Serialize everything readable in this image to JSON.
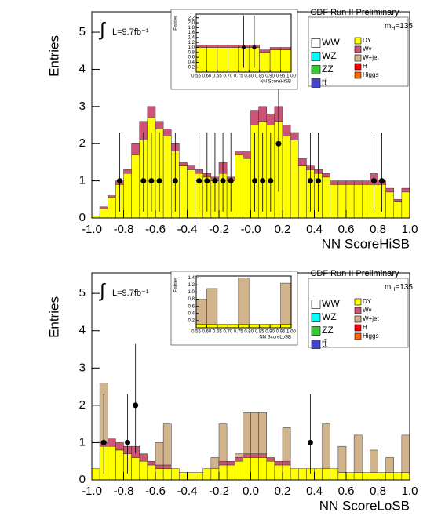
{
  "chart_data": [
    {
      "type": "histogram",
      "x_label": "NN ScoreHiSB",
      "y_label": "Entries",
      "bins": [
        -1,
        -0.95,
        -0.9,
        -0.85,
        -0.8,
        -0.75,
        -0.7,
        -0.65,
        -0.6,
        -0.55,
        -0.5,
        -0.45,
        -0.4,
        -0.35,
        -0.3,
        -0.25,
        -0.2,
        -0.15,
        -0.1,
        -0.05,
        0,
        0.05,
        0.1,
        0.15,
        0.2,
        0.25,
        0.3,
        0.35,
        0.4,
        0.45,
        0.5,
        0.55,
        0.6,
        0.65,
        0.7,
        0.75,
        0.8,
        0.85,
        0.9,
        0.95,
        1
      ],
      "series": [
        {
          "name": "DY",
          "color": "#ffff00",
          "values": [
            0.05,
            0.25,
            0.55,
            0.9,
            1.2,
            1.7,
            2.1,
            2.7,
            2.4,
            2.2,
            1.8,
            1.4,
            1.3,
            1.2,
            1.1,
            1.0,
            1.2,
            1.0,
            1.7,
            1.6,
            2.5,
            2.6,
            2.5,
            2.6,
            2.2,
            2.1,
            1.4,
            1.3,
            1.2,
            1.1,
            0.9,
            0.9,
            0.9,
            0.9,
            0.9,
            0.9,
            0.9,
            0.7,
            0.45,
            0.7
          ]
        },
        {
          "name": "Wγ",
          "color": "#cc5577",
          "values": [
            0,
            0.05,
            0.05,
            0.1,
            0.1,
            0.3,
            0.5,
            0.3,
            0.2,
            0.2,
            0.2,
            0.1,
            0.1,
            0.1,
            0.1,
            0.1,
            0.3,
            0.1,
            0.1,
            0.2,
            0.4,
            0.4,
            0.3,
            0.4,
            0.3,
            0.2,
            0.2,
            0.1,
            0.1,
            0.1,
            0.1,
            0.1,
            0.1,
            0.1,
            0.1,
            0.3,
            0.1,
            0.1,
            0.05,
            0.1
          ]
        }
      ],
      "data_points": {
        "x": [
          -0.825,
          -0.675,
          -0.625,
          -0.575,
          -0.475,
          -0.325,
          -0.275,
          -0.225,
          -0.175,
          -0.125,
          0.025,
          0.075,
          0.125,
          0.175,
          0.375,
          0.425,
          0.775,
          0.825
        ],
        "values": [
          1,
          1,
          1,
          1,
          1,
          1,
          1,
          1,
          1,
          1,
          1,
          1,
          1,
          2,
          1,
          1,
          1,
          1
        ],
        "error_low": [
          0.83,
          0.83,
          0.83,
          0.83,
          0.83,
          0.83,
          0.83,
          0.83,
          0.83,
          0.83,
          0.83,
          0.83,
          0.83,
          1.29,
          0.83,
          0.83,
          0.83,
          0.83
        ],
        "error_high": [
          1.3,
          1.3,
          1.3,
          1.3,
          1.3,
          1.3,
          1.3,
          1.3,
          1.3,
          1.3,
          1.3,
          1.3,
          1.3,
          1.64,
          1.3,
          1.3,
          1.3,
          1.3
        ]
      },
      "xlim": [
        -1,
        1
      ],
      "ylim": [
        0,
        5.55
      ],
      "xticks": [
        {
          "value": -1,
          "label": "-1.0"
        },
        -0.8,
        -0.6,
        -0.4,
        -0.2,
        {
          "value": 0,
          "label": "-0.0"
        },
        0.2,
        0.4,
        0.6,
        0.8,
        {
          "value": 1,
          "label": "1.0"
        }
      ],
      "yticks": [
        0,
        1,
        2,
        3,
        4,
        5
      ],
      "experiment_label": "CDF Run II Preliminary",
      "mass_label": {
        "symbol": "m",
        "subscript": "H",
        "text": "=135"
      },
      "integral_symbol": "∫",
      "luminosity_label": "L=9.7fb⁻¹",
      "legend": [
        {
          "name": "WW",
          "color": "#ffffff"
        },
        {
          "name": "WZ",
          "color": "#00ffff"
        },
        {
          "name": "ZZ",
          "color": "#33cc33"
        },
        {
          "name": "tt̄",
          "color": "#4444cc"
        },
        {
          "name": "DY",
          "color": "#ffff00"
        },
        {
          "name": "Wγ",
          "color": "#cc5577"
        },
        {
          "name": "W+jet",
          "color": "#d2b48c"
        },
        {
          "name": "H",
          "color": "#ff0000"
        },
        {
          "name": "Higgs",
          "color": "#ff6600"
        }
      ]
    },
    {
      "type": "histogram",
      "x_label": "NN ScoreHiSB",
      "y_label": "Entries",
      "bins": [
        0.55,
        0.6,
        0.65,
        0.7,
        0.75,
        0.8,
        0.85,
        0.9,
        0.95,
        1
      ],
      "series": [
        {
          "name": "DY",
          "color": "#ffff00",
          "values": [
            1.0,
            1.0,
            1.0,
            1.0,
            1.0,
            1.0,
            0.8,
            0.9,
            0.9
          ]
        },
        {
          "name": "Wγ",
          "color": "#cc5577",
          "values": [
            0.1,
            0.1,
            0.1,
            0.1,
            0.1,
            0.1,
            0.1,
            0.1,
            0.1
          ]
        }
      ],
      "data_points": {
        "x": [
          0.775,
          0.825
        ],
        "values": [
          1,
          1
        ],
        "error_low": [
          0.83,
          0.83
        ],
        "error_high": [
          1.3,
          1.3
        ]
      },
      "xlim": [
        0.55,
        1
      ],
      "ylim": [
        0,
        2.35
      ],
      "xticks": [
        0.55,
        {
          "value": 0.6,
          "label": "0.60"
        },
        0.65,
        {
          "value": 0.7,
          "label": "0.70"
        },
        0.75,
        {
          "value": 0.8,
          "label": "0.80"
        },
        0.85,
        {
          "value": 0.9,
          "label": "0.90"
        },
        0.95,
        {
          "value": 1,
          "label": "1.00"
        }
      ],
      "yticks": [
        0.2,
        0.4,
        0.6,
        0.8,
        {
          "value": 1,
          "label": "1.0"
        },
        1.2,
        1.4,
        1.6,
        1.8,
        {
          "value": 2,
          "label": "2.0"
        },
        2.2
      ]
    },
    {
      "type": "histogram",
      "x_label": "NN ScoreLoSB",
      "y_label": "Entries",
      "bins": [
        -1,
        -0.95,
        -0.9,
        -0.85,
        -0.8,
        -0.75,
        -0.7,
        -0.65,
        -0.6,
        -0.55,
        -0.5,
        -0.45,
        -0.4,
        -0.35,
        -0.3,
        -0.25,
        -0.2,
        -0.15,
        -0.1,
        -0.05,
        0,
        0.05,
        0.1,
        0.15,
        0.2,
        0.25,
        0.3,
        0.35,
        0.4,
        0.45,
        0.5,
        0.55,
        0.6,
        0.65,
        0.7,
        0.75,
        0.8,
        0.85,
        0.9,
        0.95,
        1
      ],
      "series": [
        {
          "name": "DY",
          "color": "#ffff00",
          "values": [
            0.3,
            0.9,
            0.9,
            0.8,
            0.7,
            0.6,
            0.5,
            0.4,
            0.3,
            0.3,
            0.3,
            0.2,
            0.2,
            0.2,
            0.3,
            0.3,
            0.4,
            0.4,
            0.5,
            0.6,
            0.6,
            0.6,
            0.5,
            0.4,
            0.4,
            0.3,
            0.3,
            0.3,
            0.3,
            0.3,
            0.3,
            0.2,
            0.2,
            0.2,
            0.2,
            0.2,
            0.2,
            0.2,
            0.2,
            0.2
          ]
        },
        {
          "name": "Wγ",
          "color": "#cc5577",
          "values": [
            0,
            0.1,
            0.2,
            0.2,
            0.2,
            0.3,
            0.2,
            0.1,
            0.1,
            0.1,
            0,
            0,
            0,
            0,
            0,
            0,
            0.1,
            0.1,
            0.1,
            0.1,
            0.1,
            0.1,
            0.1,
            0.1,
            0.1,
            0,
            0,
            0,
            0,
            0,
            0,
            0,
            0,
            0,
            0,
            0,
            0,
            0,
            0,
            0
          ]
        },
        {
          "name": "W+jet",
          "color": "#d2b48c",
          "values": [
            0,
            1.6,
            0,
            0,
            0,
            0,
            0,
            0,
            0.6,
            1.1,
            0,
            0,
            0,
            0,
            0,
            0.3,
            1.0,
            0,
            0.1,
            1.1,
            1.1,
            1.1,
            0,
            0,
            0.9,
            0,
            0,
            0,
            0,
            1.2,
            0,
            0.7,
            0,
            1.0,
            0,
            0.6,
            0,
            0.4,
            0,
            1.0
          ]
        }
      ],
      "data_points": {
        "x": [
          -0.925,
          -0.775,
          -0.725,
          0.375
        ],
        "values": [
          1,
          1,
          2,
          1
        ],
        "error_low": [
          0.83,
          0.83,
          1.29,
          0.83
        ],
        "error_high": [
          1.3,
          1.3,
          1.64,
          1.3
        ]
      },
      "xlim": [
        -1,
        1
      ],
      "ylim": [
        0,
        5.55
      ],
      "xticks": [
        {
          "value": -1,
          "label": "-1.0"
        },
        -0.8,
        -0.6,
        -0.4,
        -0.2,
        {
          "value": 0,
          "label": "0.0"
        },
        0.2,
        0.4,
        0.6,
        0.8,
        {
          "value": 1,
          "label": "1.0"
        }
      ],
      "yticks": [
        0,
        1,
        2,
        3,
        4,
        5
      ],
      "experiment_label": "CDF Run II Preliminary",
      "mass_label": {
        "symbol": "m",
        "subscript": "H",
        "text": "=135"
      },
      "integral_symbol": "∫",
      "luminosity_label": "L=9.7fb⁻¹",
      "legend": [
        {
          "name": "WW",
          "color": "#ffffff"
        },
        {
          "name": "WZ",
          "color": "#00ffff"
        },
        {
          "name": "ZZ",
          "color": "#33cc33"
        },
        {
          "name": "tt̄",
          "color": "#4444cc"
        },
        {
          "name": "DY",
          "color": "#ffff00"
        },
        {
          "name": "Wγ",
          "color": "#cc5577"
        },
        {
          "name": "W+jet",
          "color": "#d2b48c"
        },
        {
          "name": "H",
          "color": "#ff0000"
        },
        {
          "name": "Higgs",
          "color": "#ff6600"
        }
      ]
    },
    {
      "type": "histogram",
      "x_label": "NN ScoreLoSB",
      "y_label": "Entries",
      "bins": [
        0.55,
        0.6,
        0.65,
        0.7,
        0.75,
        0.8,
        0.85,
        0.9,
        0.95,
        1
      ],
      "series": [
        {
          "name": "DY",
          "color": "#ffff00",
          "values": [
            0.1,
            0.1,
            0.1,
            0.1,
            0.1,
            0.1,
            0.1,
            0.1,
            0.1
          ]
        },
        {
          "name": "W+jet",
          "color": "#d2b48c",
          "values": [
            0.7,
            1.0,
            0,
            0,
            1.3,
            0,
            0,
            0,
            1.15
          ]
        }
      ],
      "xlim": [
        0.55,
        1
      ],
      "ylim": [
        0,
        1.45
      ],
      "xticks": [
        0.55,
        {
          "value": 0.6,
          "label": "0.60"
        },
        0.65,
        {
          "value": 0.7,
          "label": "0.70"
        },
        0.75,
        {
          "value": 0.8,
          "label": "0.80"
        },
        0.85,
        {
          "value": 0.9,
          "label": "0.90"
        },
        0.95,
        {
          "value": 1,
          "label": "1.00"
        }
      ],
      "yticks": [
        0.2,
        0.4,
        0.6,
        0.8,
        {
          "value": 1,
          "label": "1.0"
        },
        1.2,
        1.4
      ]
    }
  ]
}
